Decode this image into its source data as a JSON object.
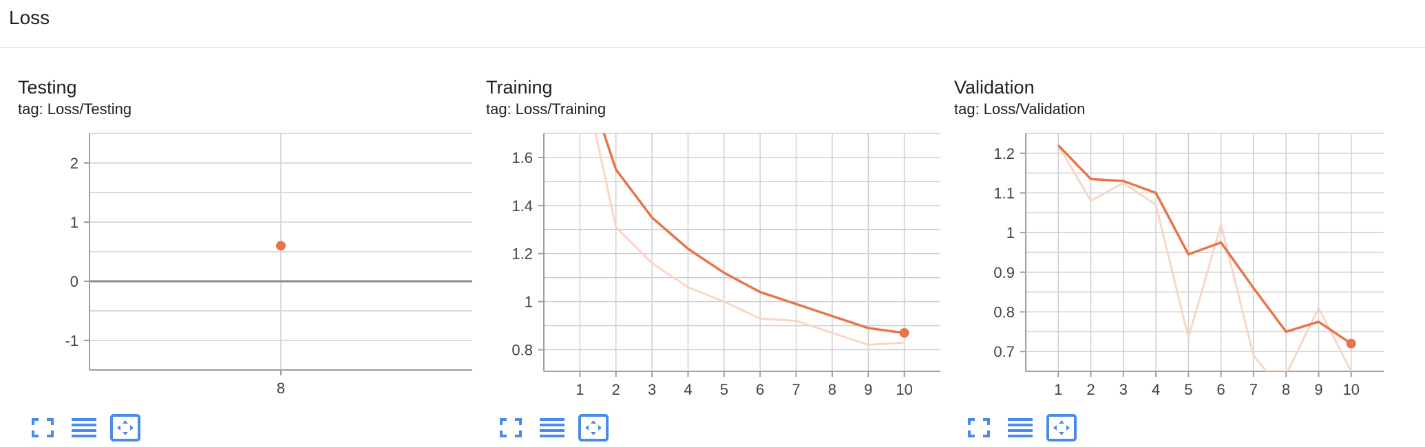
{
  "section": {
    "title": "Loss"
  },
  "colors": {
    "line": "#e8744a",
    "raw": "#fad6c5",
    "grid": "#cfcfcf",
    "axis": "#9e9e9e",
    "icon": "#4a8ae8"
  },
  "toolbar": {
    "icons": [
      "fullscreen-icon",
      "data-table-icon",
      "fit-domain-icon"
    ]
  },
  "chart_data": [
    {
      "type": "scatter",
      "title": "Testing",
      "tag": "tag: Loss/Testing",
      "xticks": [
        8
      ],
      "xlim": [
        7,
        9
      ],
      "ylim": [
        -1.5,
        2.5
      ],
      "yticks": [
        -1,
        0,
        1,
        2
      ],
      "ytick_labels": [
        "-1",
        "0",
        "1",
        "2"
      ],
      "zero_line": true,
      "series": [
        {
          "smoothed": [
            [
              8,
              0.6
            ]
          ],
          "raw": []
        }
      ],
      "last_point": [
        8,
        0.6
      ]
    },
    {
      "type": "line",
      "title": "Training",
      "tag": "tag: Loss/Training",
      "xticks": [
        1,
        2,
        3,
        4,
        5,
        6,
        7,
        8,
        9,
        10
      ],
      "xlim": [
        0,
        11
      ],
      "ylim": [
        0.71,
        1.7
      ],
      "yticks": [
        0.8,
        1,
        1.2,
        1.4,
        1.6
      ],
      "ytick_labels": [
        "0.8",
        "1",
        "1.2",
        "1.4",
        "1.6"
      ],
      "series": [
        {
          "smoothed": [
            [
              1,
              2.0
            ],
            [
              2,
              1.55
            ],
            [
              3,
              1.35
            ],
            [
              4,
              1.22
            ],
            [
              5,
              1.12
            ],
            [
              6,
              1.04
            ],
            [
              7,
              0.99
            ],
            [
              8,
              0.94
            ],
            [
              9,
              0.89
            ],
            [
              10,
              0.87
            ]
          ],
          "raw": [
            [
              1,
              2.0
            ],
            [
              2,
              1.31
            ],
            [
              3,
              1.16
            ],
            [
              4,
              1.06
            ],
            [
              5,
              1.0
            ],
            [
              6,
              0.93
            ],
            [
              7,
              0.92
            ],
            [
              8,
              0.87
            ],
            [
              9,
              0.82
            ],
            [
              10,
              0.83
            ]
          ]
        }
      ],
      "last_point": [
        10,
        0.87
      ]
    },
    {
      "type": "line",
      "title": "Validation",
      "tag": "tag: Loss/Validation",
      "xticks": [
        1,
        2,
        3,
        4,
        5,
        6,
        7,
        8,
        9,
        10
      ],
      "xlim": [
        0,
        11
      ],
      "ylim": [
        0.65,
        1.25
      ],
      "yticks": [
        0.7,
        0.8,
        0.9,
        1,
        1.1,
        1.2
      ],
      "ytick_labels": [
        "0.7",
        "0.8",
        "0.9",
        "1",
        "1.1",
        "1.2"
      ],
      "series": [
        {
          "smoothed": [
            [
              1,
              1.22
            ],
            [
              2,
              1.135
            ],
            [
              3,
              1.13
            ],
            [
              4,
              1.1
            ],
            [
              5,
              0.945
            ],
            [
              6,
              0.975
            ],
            [
              7,
              0.86
            ],
            [
              8,
              0.75
            ],
            [
              9,
              0.775
            ],
            [
              10,
              0.72
            ]
          ],
          "raw": [
            [
              1,
              1.22
            ],
            [
              2,
              1.08
            ],
            [
              3,
              1.125
            ],
            [
              4,
              1.07
            ],
            [
              5,
              0.735
            ],
            [
              6,
              1.02
            ],
            [
              7,
              0.69
            ],
            [
              7.4,
              0.65
            ],
            [
              8.05,
              0.65
            ],
            [
              9,
              0.81
            ],
            [
              10,
              0.65
            ]
          ]
        }
      ],
      "last_point": [
        10,
        0.72
      ]
    }
  ]
}
